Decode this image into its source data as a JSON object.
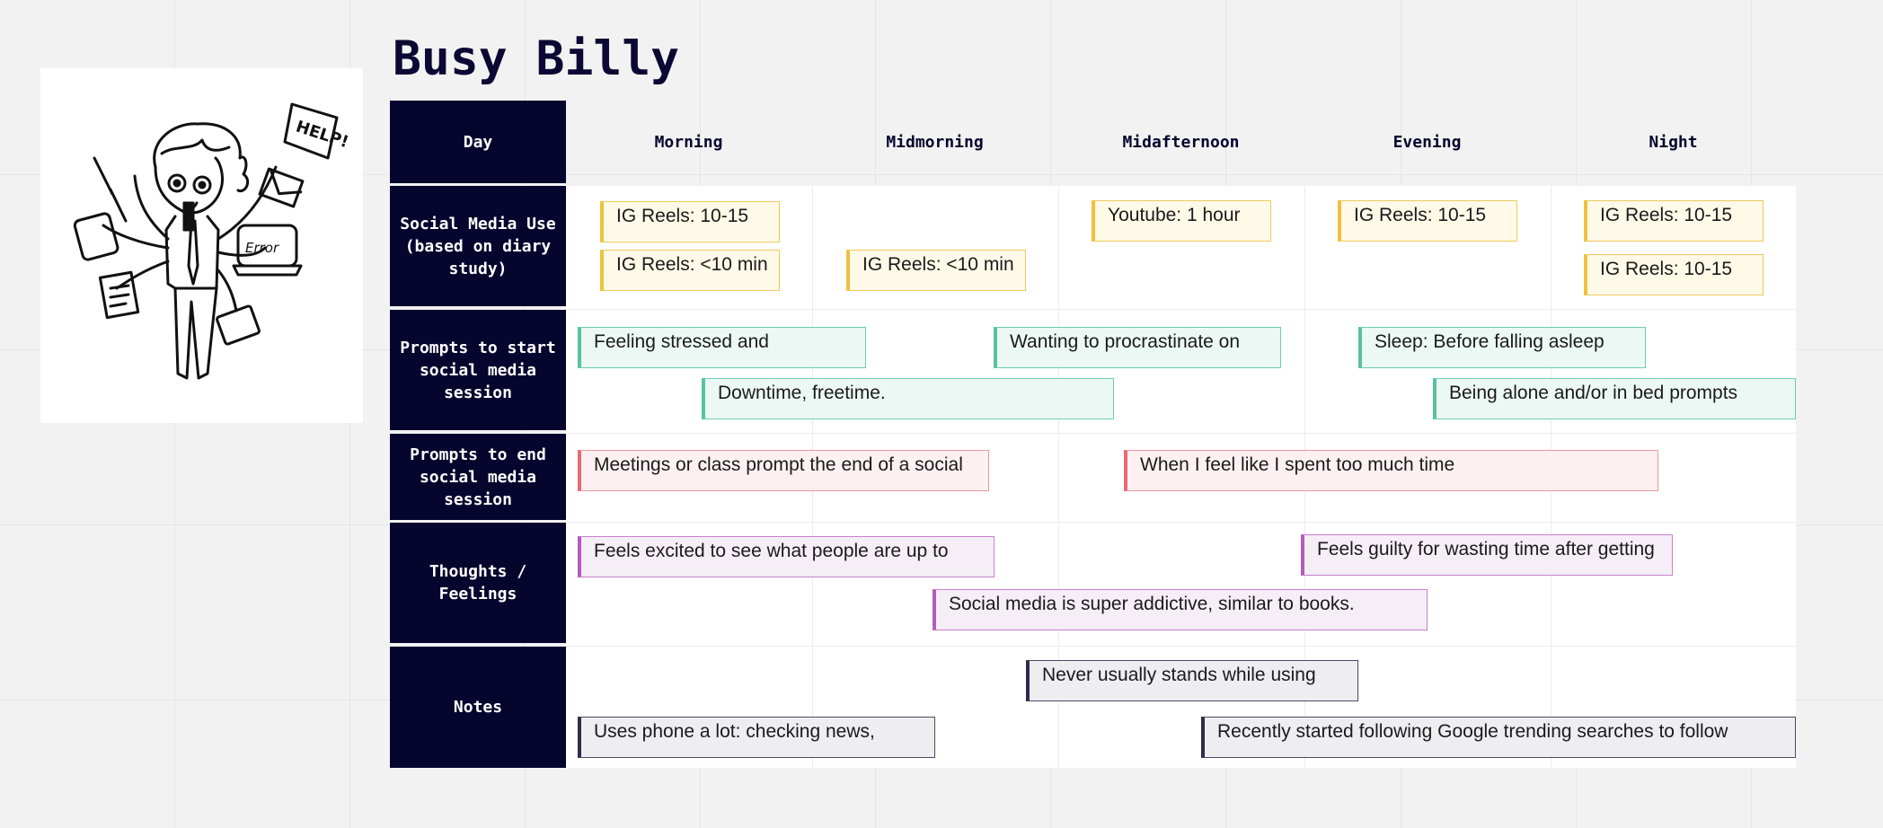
{
  "persona": {
    "name": "Busy Billy",
    "illustration_text": [
      "HELP!",
      "Error"
    ]
  },
  "columns": [
    "Morning",
    "Midmorning",
    "Midafternoon",
    "Evening",
    "Night"
  ],
  "rows": {
    "day": "Day",
    "social_media_use": "Social Media Use (based on diary study)",
    "prompts_start": "Prompts to start social media session",
    "prompts_end": "Prompts to end social media session",
    "thoughts": "Thoughts / Feelings",
    "notes": "Notes"
  },
  "stickies": {
    "usage": [
      "IG Reels: 10-15",
      "IG Reels: <10 min",
      "IG Reels: <10 min",
      "Youtube: 1 hour",
      "IG Reels: 10-15",
      "IG Reels: 10-15",
      "IG Reels: 10-15"
    ],
    "start": [
      "Feeling stressed and",
      "Downtime, freetime.",
      "Wanting to procrastinate on",
      "Sleep: Before falling asleep",
      "Being alone and/or in bed prompts"
    ],
    "end": [
      "Meetings or class prompt the end of a social",
      "When I feel like I spent too much time"
    ],
    "thoughts": [
      "Feels excited to see what people are up to",
      "Social media is super addictive, similar to books.",
      "Feels guilty for wasting time after getting"
    ],
    "notes": [
      "Never usually stands while using",
      "Uses phone a lot: checking news,",
      "Recently started following Google trending searches to follow"
    ]
  },
  "colors": {
    "header_bg": "#05052e",
    "usage": "#efc13f",
    "start": "#56c2a2",
    "end": "#e86a74",
    "thoughts": "#b25cbd",
    "notes": "#2c2c4c"
  }
}
